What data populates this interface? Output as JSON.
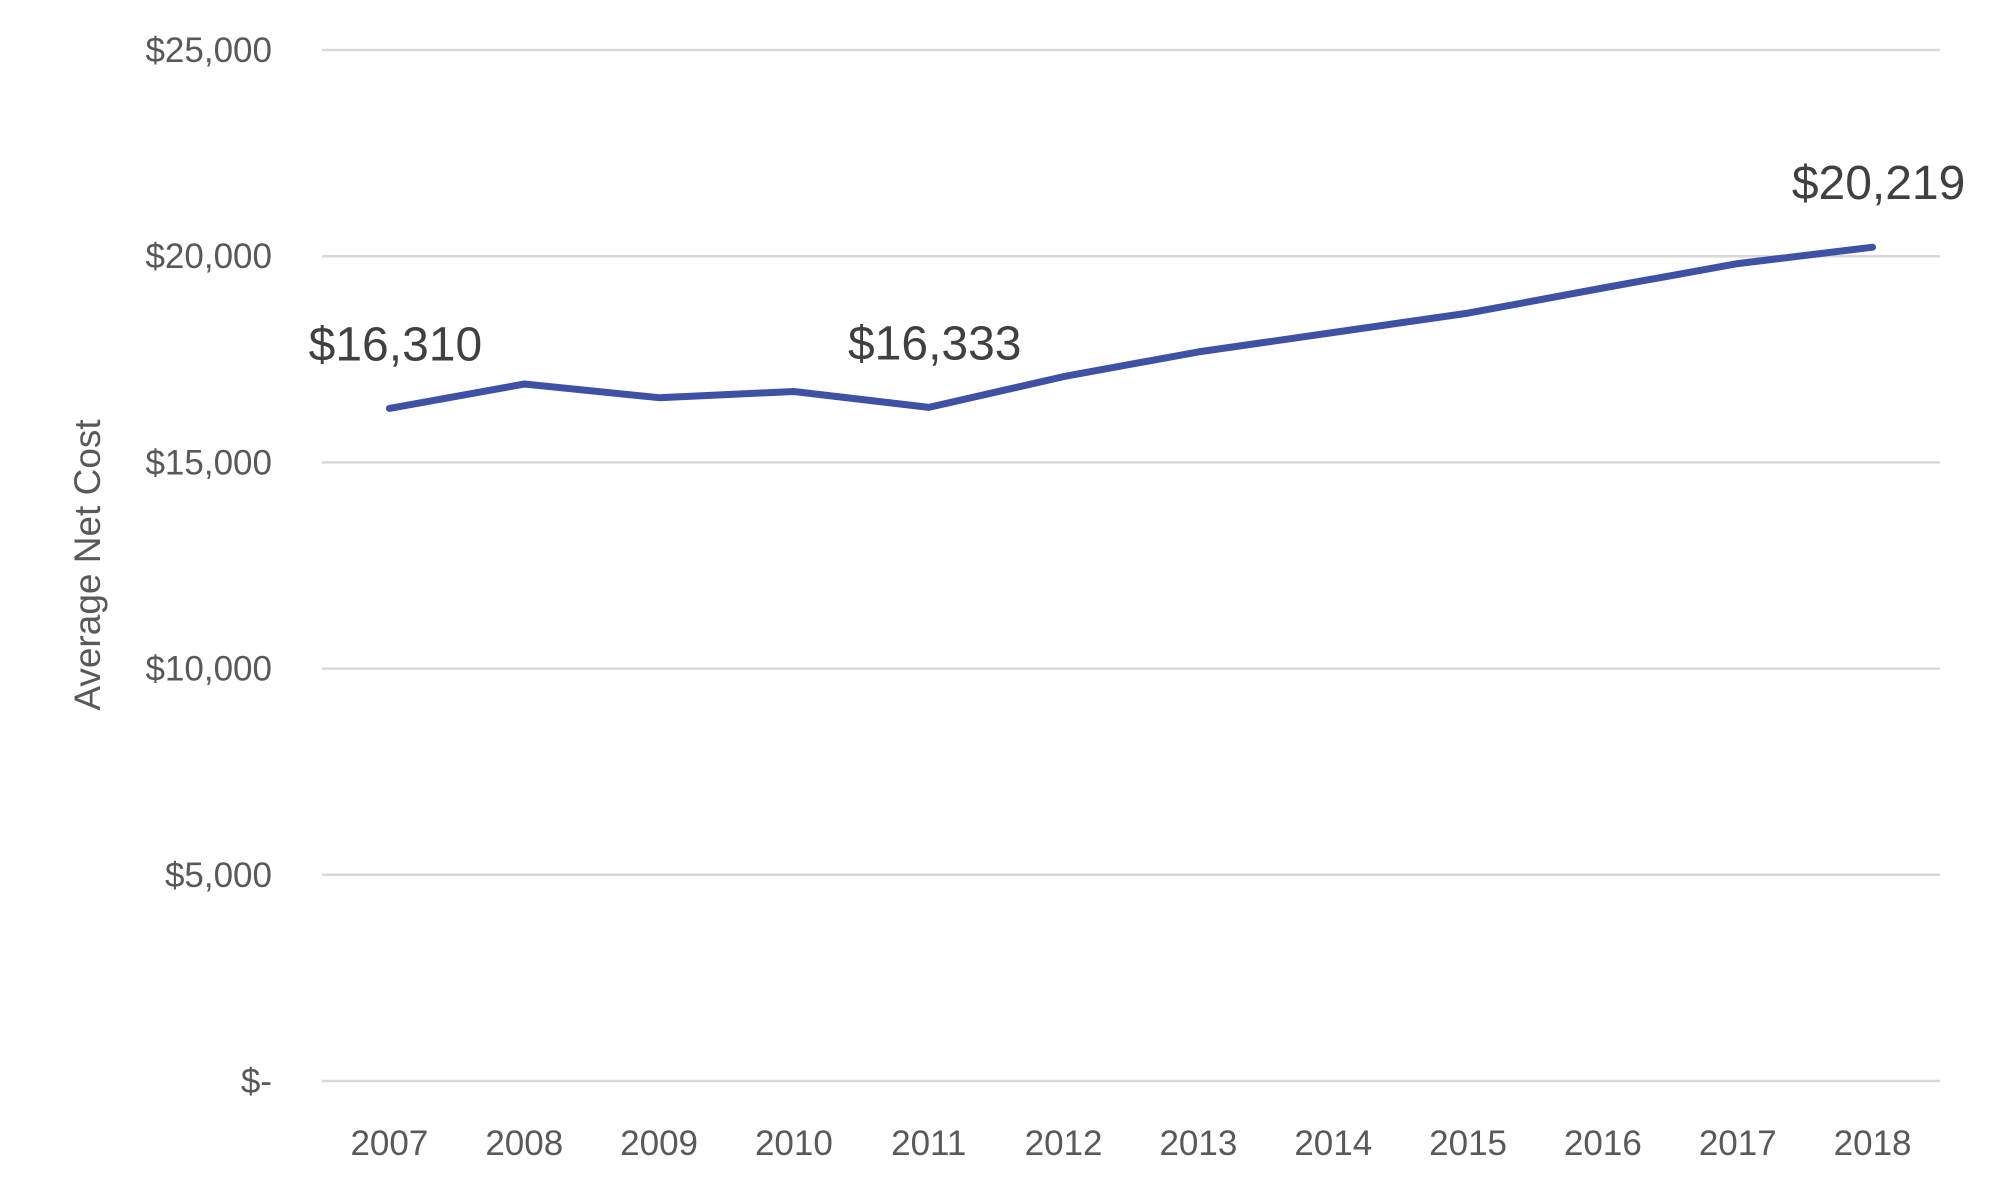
{
  "chart_data": {
    "type": "line",
    "title": "",
    "xlabel": "",
    "ylabel": "Average Net Cost",
    "x": [
      "2007",
      "2008",
      "2009",
      "2010",
      "2011",
      "2012",
      "2013",
      "2014",
      "2015",
      "2016",
      "2017",
      "2018"
    ],
    "series": [
      {
        "values": [
          16310,
          16900,
          16570,
          16720,
          16333,
          17080,
          17680,
          18150,
          18620,
          19230,
          19820,
          20219
        ],
        "color": "#3f51a5"
      }
    ],
    "ylim": [
      0,
      25000
    ],
    "y_ticks": [
      0,
      5000,
      10000,
      15000,
      20000,
      25000
    ],
    "y_tick_labels": [
      "$-",
      "$5,000",
      "$10,000",
      "$15,000",
      "$20,000",
      "$25,000"
    ],
    "data_labels": [
      {
        "x": "2007",
        "text": "$16,310"
      },
      {
        "x": "2011",
        "text": "$16,333"
      },
      {
        "x": "2018",
        "text": "$20,219"
      }
    ],
    "grid": true,
    "legend": "none"
  }
}
